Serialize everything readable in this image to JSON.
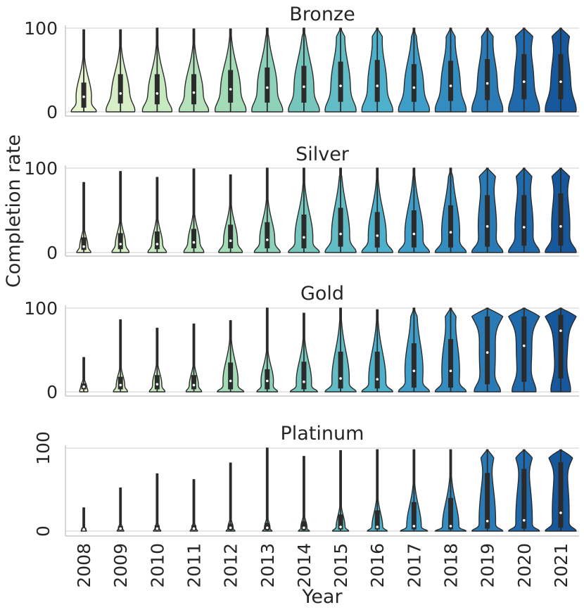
{
  "chart_data": {
    "type": "violin",
    "ylabel": "Completion rate",
    "xlabel": "Year",
    "categories": [
      "2008",
      "2009",
      "2010",
      "2011",
      "2012",
      "2013",
      "2014",
      "2015",
      "2016",
      "2017",
      "2018",
      "2019",
      "2020",
      "2021"
    ],
    "ylim": [
      0,
      100
    ],
    "yticks": [
      0,
      100
    ],
    "grid": "horizontal",
    "palette": [
      "#e6f5d0",
      "#d6efc7",
      "#c6e9bf",
      "#b5e2bb",
      "#a3dbb7",
      "#8ed1b9",
      "#77c6bd",
      "#62bcc5",
      "#4eb1cb",
      "#3e9ec9",
      "#338dc0",
      "#2a7bb5",
      "#2069ab",
      "#17589c"
    ],
    "panels": [
      {
        "title": "Bronze",
        "medians": [
          18,
          22,
          22,
          23,
          27,
          29,
          30,
          31,
          31,
          29,
          31,
          34,
          36,
          36
        ],
        "q1": [
          5,
          10,
          9,
          9,
          11,
          11,
          11,
          12,
          12,
          12,
          13,
          14,
          15,
          15
        ],
        "q3": [
          35,
          45,
          45,
          45,
          50,
          53,
          55,
          60,
          62,
          57,
          61,
          63,
          69,
          69
        ],
        "max": [
          98,
          98,
          100,
          99,
          99,
          100,
          100,
          100,
          100,
          100,
          100,
          100,
          100,
          100
        ]
      },
      {
        "title": "Silver",
        "medians": [
          7,
          10,
          10,
          12,
          14,
          15,
          18,
          22,
          20,
          22,
          24,
          31,
          30,
          31
        ],
        "q1": [
          3,
          4,
          4,
          5,
          5,
          5,
          5,
          7,
          6,
          6,
          6,
          7,
          8,
          8
        ],
        "q3": [
          18,
          23,
          25,
          28,
          33,
          36,
          45,
          53,
          48,
          50,
          56,
          68,
          68,
          70
        ],
        "max": [
          83,
          96,
          89,
          99,
          92,
          100,
          100,
          100,
          100,
          100,
          100,
          100,
          100,
          100
        ]
      },
      {
        "title": "Gold",
        "medians": [
          6,
          8,
          9,
          8,
          13,
          13,
          12,
          16,
          15,
          25,
          25,
          47,
          55,
          73
        ],
        "q1": [
          3,
          3,
          3,
          3,
          3,
          3,
          3,
          4,
          4,
          5,
          5,
          9,
          12,
          16
        ],
        "q3": [
          10,
          18,
          20,
          20,
          35,
          27,
          36,
          48,
          48,
          58,
          63,
          90,
          90,
          92
        ],
        "max": [
          41,
          86,
          76,
          81,
          85,
          100,
          94,
          100,
          98,
          100,
          100,
          100,
          100,
          100
        ]
      },
      {
        "title": "Platinum",
        "medians": [
          2,
          3,
          3,
          3,
          4,
          4,
          4,
          5,
          5,
          6,
          6,
          12,
          13,
          22
        ],
        "q1": [
          1,
          1,
          1,
          1,
          1,
          1,
          1,
          2,
          2,
          2,
          2,
          3,
          3,
          4
        ],
        "q3": [
          4,
          6,
          7,
          7,
          9,
          10,
          12,
          20,
          25,
          35,
          40,
          70,
          75,
          83
        ],
        "max": [
          28,
          52,
          69,
          62,
          82,
          100,
          90,
          97,
          98,
          98,
          98,
          98,
          98,
          98
        ]
      }
    ]
  }
}
